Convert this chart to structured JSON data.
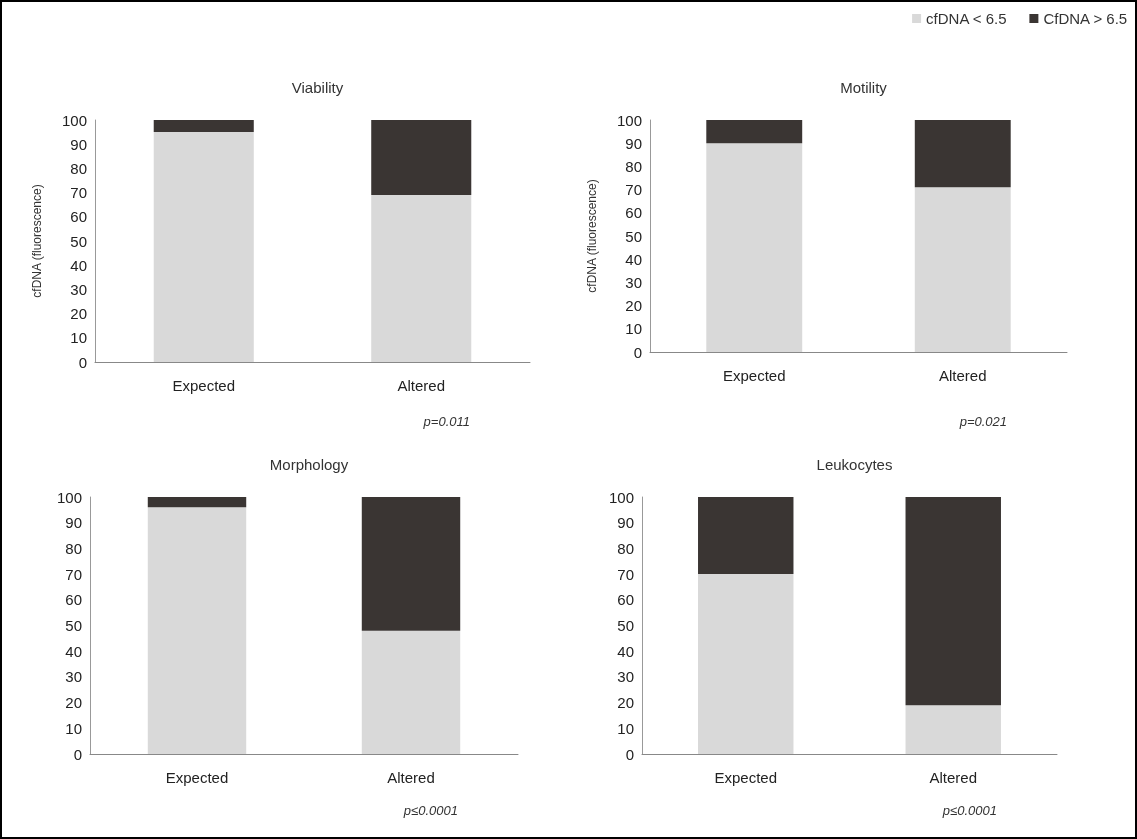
{
  "chart_data": [
    {
      "type": "bar",
      "title": "Viability",
      "ylabel": "cfDNA (fluorescence)",
      "categories": [
        "Expected",
        "Altered"
      ],
      "stacked": true,
      "ylim": [
        0,
        100
      ],
      "yticks": [
        0,
        10,
        20,
        30,
        40,
        50,
        60,
        70,
        80,
        90,
        100
      ],
      "grid": false,
      "legend": false,
      "annotations": [
        "p=0.011"
      ],
      "series": [
        {
          "color": "#d9d9d9",
          "values": [
            95,
            69
          ]
        },
        {
          "color": "#3a3533",
          "values": [
            5,
            31
          ]
        }
      ]
    },
    {
      "type": "bar",
      "title": "Motility",
      "ylabel": "cfDNA (fluorescence)",
      "categories": [
        "Expected",
        "Altered"
      ],
      "stacked": true,
      "ylim": [
        0,
        100
      ],
      "yticks": [
        0,
        10,
        20,
        30,
        40,
        50,
        60,
        70,
        80,
        90,
        100
      ],
      "grid": false,
      "legend": "top right",
      "annotations": [
        "p=0.021"
      ],
      "series": [
        {
          "name": "cfDNA < 6.5",
          "color": "#d9d9d9",
          "values": [
            90,
            71
          ]
        },
        {
          "name": "CfDNA > 6.5",
          "color": "#3a3533",
          "values": [
            10,
            29
          ]
        }
      ]
    },
    {
      "type": "bar",
      "title": "Morphology",
      "categories": [
        "Expected",
        "Altered"
      ],
      "stacked": true,
      "ylim": [
        0,
        100
      ],
      "yticks": [
        0,
        10,
        20,
        30,
        40,
        50,
        60,
        70,
        80,
        90,
        100
      ],
      "grid": false,
      "legend": false,
      "annotations": [
        "p≤0.0001"
      ],
      "series": [
        {
          "color": "#d9d9d9",
          "values": [
            96,
            48
          ]
        },
        {
          "color": "#3a3533",
          "values": [
            4,
            52
          ]
        }
      ]
    },
    {
      "type": "bar",
      "title": "Leukocytes",
      "categories": [
        "Expected",
        "Altered"
      ],
      "stacked": true,
      "ylim": [
        0,
        100
      ],
      "yticks": [
        0,
        10,
        20,
        30,
        40,
        50,
        60,
        70,
        80,
        90,
        100
      ],
      "grid": false,
      "legend": false,
      "annotations": [
        "p≤0.0001"
      ],
      "series": [
        {
          "color": "#d9d9d9",
          "values": [
            70,
            19
          ]
        },
        {
          "color": "#3a3533",
          "values": [
            30,
            81
          ]
        }
      ]
    }
  ]
}
